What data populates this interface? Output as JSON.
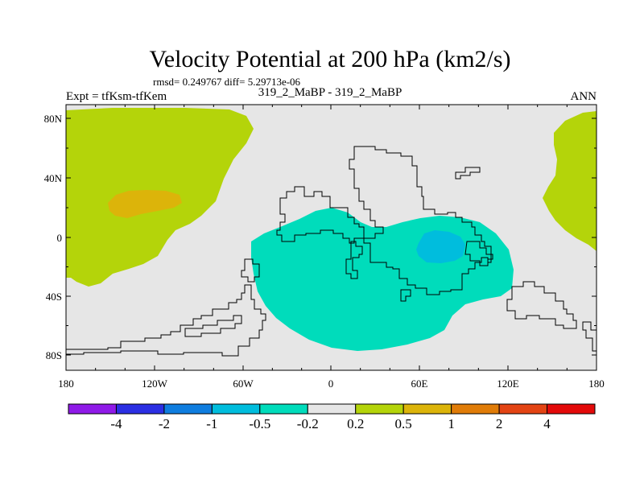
{
  "title": "Velocity Potential at 200 hPa (km2/s)",
  "stats": "rmsd= 0.249767 diff= 5.29713e-06",
  "expt": "Expt = tfKsm-tfKem",
  "case": "319_2_MaBP - 319_2_MaBP",
  "season": "ANN",
  "lat_ticks": [
    "80N",
    "40N",
    "0",
    "40S",
    "80S"
  ],
  "lon_ticks": [
    "180",
    "120W",
    "60W",
    "0",
    "60E",
    "120E",
    "180"
  ],
  "legend": {
    "labels": [
      "-4",
      "-2",
      "-1",
      "-0.5",
      "-0.2",
      "0.2",
      "0.5",
      "1",
      "2",
      "4"
    ],
    "colors": [
      "#8f1ae8",
      "#2b2fe3",
      "#0f7ddf",
      "#00bddd",
      "#00dcbb",
      "#e6e6e6",
      "#b4d40a",
      "#dcb40a",
      "#e07c08",
      "#e34414",
      "#e30a0a"
    ]
  },
  "colors": {
    "background": "#e6e6e6",
    "positive_02_05": "#b4d40a",
    "positive_05_1": "#dcb40a",
    "negative_02_05": "#00dcbb",
    "negative_05_1": "#00bddd"
  }
}
